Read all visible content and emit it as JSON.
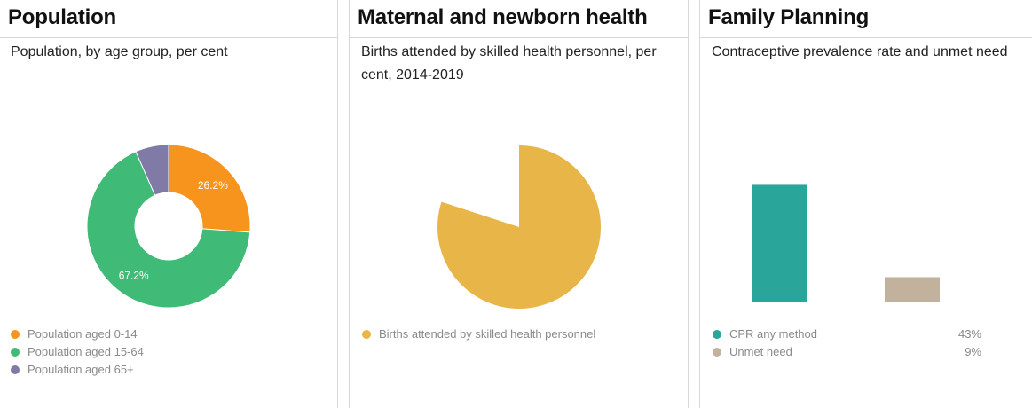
{
  "panels": {
    "population": {
      "title": "Population",
      "subtitle": "Population, by age group, per cent"
    },
    "maternal": {
      "title": "Maternal and newborn health",
      "subtitle": "Births attended by skilled health personnel, per cent, 2014-2019"
    },
    "family": {
      "title": "Family Planning",
      "subtitle": "Contraceptive prevalence rate and unmet need"
    }
  },
  "chart_data": [
    {
      "type": "pie",
      "style": "donut",
      "categories": [
        "Population aged 0-14",
        "Population aged 15-64",
        "Population aged 65+"
      ],
      "values": [
        26.2,
        67.2,
        6.6
      ],
      "data_labels": [
        "26.2%",
        "67.2%",
        ""
      ],
      "colors": [
        "#f7941d",
        "#3fba77",
        "#7f7aa6"
      ]
    },
    {
      "type": "pie",
      "categories": [
        "Births attended by skilled health personnel"
      ],
      "values": [
        80
      ],
      "colors": [
        "#e8b548"
      ]
    },
    {
      "type": "bar",
      "categories": [
        "CPR any method",
        "Unmet need"
      ],
      "values": [
        43,
        9
      ],
      "value_labels": [
        "43%",
        "9%"
      ],
      "colors": [
        "#29a59a",
        "#c2b19c"
      ],
      "ylim": [
        0,
        50
      ]
    }
  ]
}
